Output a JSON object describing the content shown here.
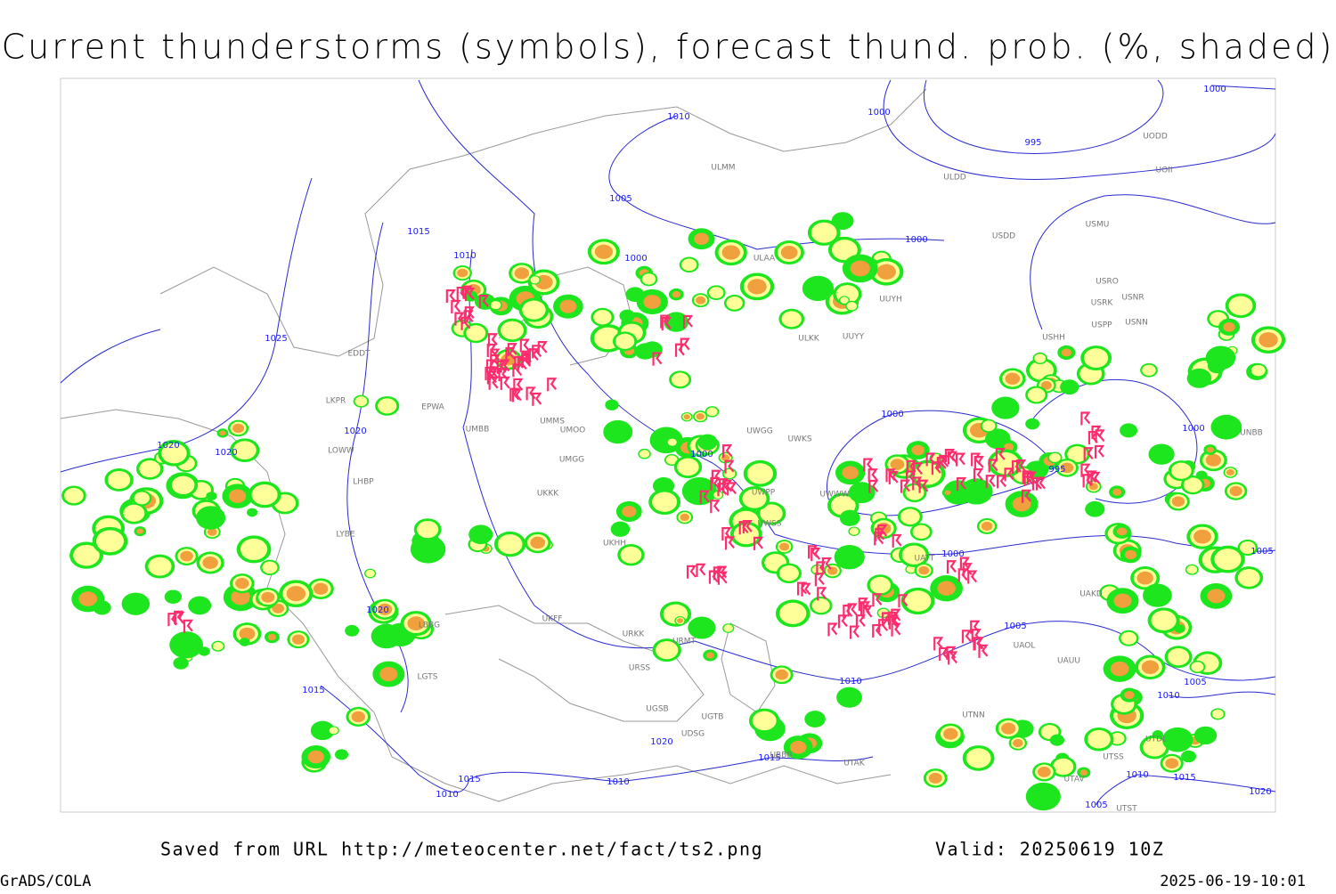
{
  "header": {
    "title": "Current thunderstorms (symbols), forecast thund. prob. (%, shaded)"
  },
  "map": {
    "isobar_labels": [
      "1010",
      "1000",
      "995",
      "1000",
      "1005",
      "1015",
      "1010",
      "1000",
      "1000",
      "1025",
      "1020",
      "1020",
      "1020",
      "1000",
      "1000",
      "995",
      "1000",
      "1000",
      "1005",
      "1020",
      "1005",
      "1015",
      "1010",
      "1005",
      "1010",
      "1020",
      "1015",
      "1015",
      "1010",
      "1010",
      "1010",
      "1015",
      "1020",
      "1005"
    ],
    "stations": [
      "ULMM",
      "ULDD",
      "UODD",
      "UOII",
      "USDD",
      "USMU",
      "ULAA",
      "USRO",
      "USRK",
      "USNR",
      "UUYH",
      "USPP",
      "USNN",
      "USHH",
      "ULKK",
      "UUYY",
      "EPWA",
      "UMMS",
      "UMOO",
      "UMBB",
      "LKPR",
      "EDDT",
      "UWGG",
      "UWKS",
      "UMGG",
      "UWPP",
      "UKKK",
      "UWSS",
      "LHBP",
      "LOWW",
      "LYBE",
      "UKHH",
      "UWWW",
      "UATT",
      "UAKD",
      "UAOL",
      "UAUU",
      "LBBG",
      "UKFF",
      "URKK",
      "URMT",
      "URSS",
      "LGTS",
      "UGSB",
      "UGTB",
      "UBBB",
      "UDSG",
      "UTAK",
      "UTNN",
      "UTSS",
      "UTDL",
      "UTAV",
      "UTST",
      "UNBB"
    ]
  },
  "footer": {
    "source": "Saved from URL http://meteocenter.net/fact/ts2.png",
    "valid": "Valid: 20250619 10Z",
    "software": "GrADS/COLA",
    "timestamp": "2025-06-19-10:01"
  }
}
